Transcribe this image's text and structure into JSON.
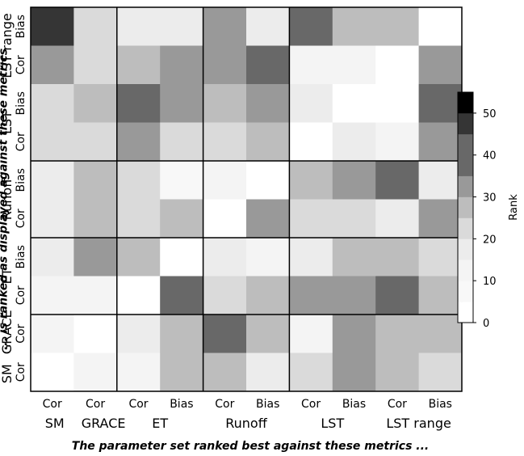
{
  "chart_data": {
    "type": "heatmap",
    "xlabel": "The parameter set ranked best against these metrics ...",
    "ylabel": "... is ranked as displayed against these metrics",
    "columns": [
      {
        "group": "SM",
        "metric": "Cor"
      },
      {
        "group": "GRACE",
        "metric": "Cor"
      },
      {
        "group": "ET",
        "metric": "Cor"
      },
      {
        "group": "ET",
        "metric": "Bias"
      },
      {
        "group": "Runoff",
        "metric": "Cor"
      },
      {
        "group": "Runoff",
        "metric": "Bias"
      },
      {
        "group": "LST",
        "metric": "Cor"
      },
      {
        "group": "LST",
        "metric": "Bias"
      },
      {
        "group": "LST range",
        "metric": "Cor"
      },
      {
        "group": "LST range",
        "metric": "Bias"
      }
    ],
    "x_tick_labels": [
      "Cor",
      "Cor",
      "Cor",
      "Bias",
      "Cor",
      "Bias",
      "Cor",
      "Bias",
      "Cor",
      "Bias"
    ],
    "x_group_labels": [
      "SM",
      "GRACE",
      "ET",
      "Runoff",
      "LST",
      "LST range"
    ],
    "rows": [
      {
        "group": "LST range",
        "metric": "Bias"
      },
      {
        "group": "LST range",
        "metric": "Cor"
      },
      {
        "group": "LST",
        "metric": "Bias"
      },
      {
        "group": "LST",
        "metric": "Cor"
      },
      {
        "group": "Runoff",
        "metric": "Bias"
      },
      {
        "group": "Runoff",
        "metric": "Cor"
      },
      {
        "group": "ET",
        "metric": "Bias"
      },
      {
        "group": "ET",
        "metric": "Cor"
      },
      {
        "group": "GRACE",
        "metric": "Cor"
      },
      {
        "group": "SM",
        "metric": "Cor"
      }
    ],
    "y_tick_labels": [
      "Bias",
      "Cor",
      "Bias",
      "Cor",
      "Bias",
      "Cor",
      "Bias",
      "Cor",
      "Cor",
      "Cor"
    ],
    "y_group_labels": [
      "LST range",
      "LST",
      "Runoff",
      "ET",
      "GRACE",
      "SM"
    ],
    "values": [
      [
        47,
        22,
        17,
        17,
        32,
        17,
        40,
        27,
        27,
        2
      ],
      [
        32,
        22,
        27,
        32,
        32,
        40,
        12,
        12,
        2,
        32
      ],
      [
        22,
        27,
        40,
        32,
        27,
        32,
        17,
        2,
        2,
        40
      ],
      [
        22,
        22,
        32,
        22,
        22,
        27,
        2,
        17,
        12,
        32
      ],
      [
        17,
        27,
        22,
        7,
        12,
        2,
        27,
        32,
        40,
        17
      ],
      [
        17,
        27,
        22,
        27,
        2,
        32,
        22,
        22,
        17,
        32
      ],
      [
        17,
        32,
        27,
        2,
        17,
        12,
        17,
        27,
        27,
        22
      ],
      [
        12,
        12,
        2,
        40,
        22,
        27,
        32,
        32,
        40,
        27
      ],
      [
        12,
        2,
        17,
        27,
        40,
        27,
        12,
        32,
        27,
        27
      ],
      [
        2,
        12,
        12,
        27,
        27,
        17,
        22,
        32,
        27,
        22
      ]
    ],
    "vmin": 0,
    "vmax": 55,
    "colorbar": {
      "label": "Rank",
      "ticks": [
        0,
        10,
        20,
        30,
        40,
        50
      ],
      "bins": [
        {
          "from": 0,
          "to": 5,
          "color": "#ffffff"
        },
        {
          "from": 5,
          "to": 10,
          "color": "#f8f8f8"
        },
        {
          "from": 10,
          "to": 15,
          "color": "#f4f4f4"
        },
        {
          "from": 15,
          "to": 20,
          "color": "#ececec"
        },
        {
          "from": 20,
          "to": 25,
          "color": "#dadada"
        },
        {
          "from": 25,
          "to": 30,
          "color": "#bdbdbd"
        },
        {
          "from": 30,
          "to": 35,
          "color": "#999999"
        },
        {
          "from": 35,
          "to": 45,
          "color": "#686868"
        },
        {
          "from": 45,
          "to": 50,
          "color": "#353535"
        },
        {
          "from": 50,
          "to": 55,
          "color": "#000000"
        }
      ]
    }
  }
}
